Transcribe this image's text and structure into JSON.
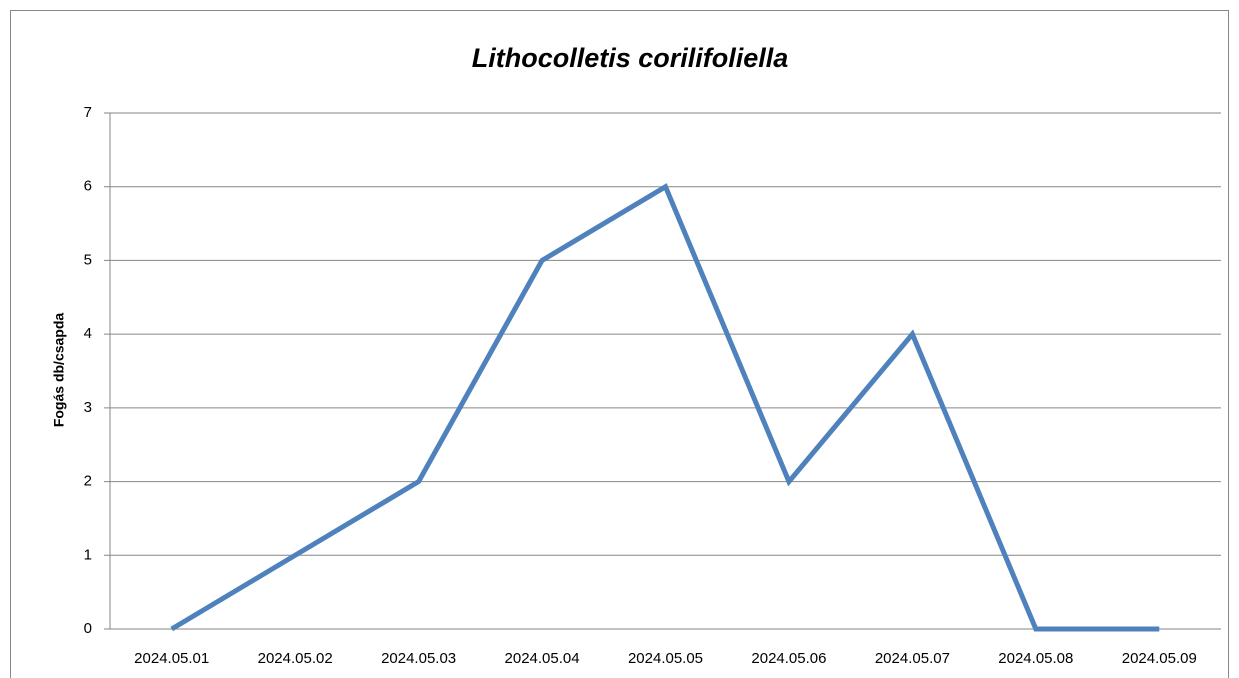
{
  "chart_data": {
    "type": "line",
    "title": "Lithocolletis corilifoliella",
    "y_label": "Fogás db/csapda",
    "categories": [
      "2024.05.01",
      "2024.05.02",
      "2024.05.03",
      "2024.05.04",
      "2024.05.05",
      "2024.05.06",
      "2024.05.07",
      "2024.05.08",
      "2024.05.09"
    ],
    "series": [
      {
        "name": "Lithocolletis corilifoliella",
        "color": "#4f81bd",
        "values": [
          0,
          1,
          2,
          5,
          6,
          2,
          4,
          0,
          0
        ]
      }
    ],
    "ylim": [
      0,
      7
    ],
    "yticks": [
      0,
      1,
      2,
      3,
      4,
      5,
      6,
      7
    ],
    "grid": true
  }
}
